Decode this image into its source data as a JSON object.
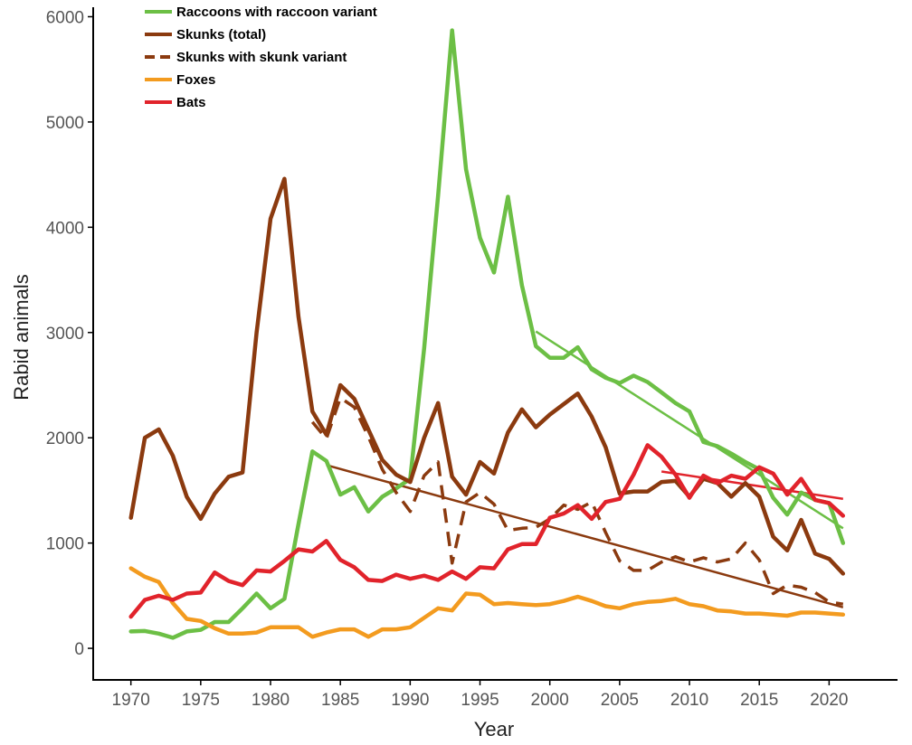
{
  "chart_data": {
    "type": "line",
    "title": "",
    "xlabel": "Year",
    "ylabel": "Rabid animals",
    "xlim": [
      1967.3,
      2024.9
    ],
    "ylim": [
      -300,
      6090
    ],
    "x_ticks": [
      1970,
      1975,
      1980,
      1985,
      1990,
      1995,
      2000,
      2005,
      2010,
      2015,
      2020
    ],
    "y_ticks": [
      0,
      1000,
      2000,
      3000,
      4000,
      5000,
      6000
    ],
    "grid": false,
    "legend_position": "top-left",
    "series": [
      {
        "name": "Raccoons with raccoon variant",
        "color": "#6cbf45",
        "style": "solid",
        "x": [
          1970,
          1971,
          1972,
          1973,
          1974,
          1975,
          1976,
          1977,
          1978,
          1979,
          1980,
          1981,
          1982,
          1983,
          1984,
          1985,
          1986,
          1987,
          1988,
          1989,
          1990,
          1991,
          1992,
          1993,
          1994,
          1995,
          1996,
          1997,
          1998,
          1999,
          2000,
          2001,
          2002,
          2003,
          2004,
          2005,
          2006,
          2007,
          2008,
          2009,
          2010,
          2011,
          2012,
          2013,
          2014,
          2015,
          2016,
          2017,
          2018,
          2019,
          2020,
          2021
        ],
        "values": [
          160,
          165,
          140,
          100,
          160,
          175,
          250,
          250,
          380,
          520,
          380,
          470,
          1180,
          1870,
          1780,
          1460,
          1530,
          1300,
          1440,
          1520,
          1610,
          2850,
          4300,
          5870,
          4550,
          3900,
          3570,
          4290,
          3450,
          2870,
          2760,
          2760,
          2860,
          2650,
          2570,
          2520,
          2590,
          2530,
          2430,
          2330,
          2250,
          1960,
          1920,
          1850,
          1770,
          1700,
          1430,
          1270,
          1480,
          1410,
          1380,
          1000
        ]
      },
      {
        "name": "Skunks (total)",
        "color": "#8b3a0f",
        "style": "solid",
        "x": [
          1970,
          1971,
          1972,
          1973,
          1974,
          1975,
          1976,
          1977,
          1978,
          1979,
          1980,
          1981,
          1982,
          1983,
          1984,
          1985,
          1986,
          1987,
          1988,
          1989,
          1990,
          1991,
          1992,
          1993,
          1994,
          1995,
          1996,
          1997,
          1998,
          1999,
          2000,
          2001,
          2002,
          2003,
          2004,
          2005,
          2006,
          2007,
          2008,
          2009,
          2010,
          2011,
          2012,
          2013,
          2014,
          2015,
          2016,
          2017,
          2018,
          2019,
          2020,
          2021
        ],
        "values": [
          1240,
          2000,
          2080,
          1830,
          1440,
          1230,
          1470,
          1630,
          1670,
          3000,
          4080,
          4460,
          3150,
          2250,
          2030,
          2500,
          2370,
          2080,
          1790,
          1650,
          1580,
          2000,
          2330,
          1630,
          1460,
          1770,
          1660,
          2050,
          2270,
          2100,
          2220,
          2320,
          2420,
          2200,
          1910,
          1470,
          1490,
          1490,
          1580,
          1590,
          1440,
          1610,
          1570,
          1440,
          1570,
          1440,
          1060,
          930,
          1220,
          900,
          850,
          710
        ]
      },
      {
        "name": "Skunks with skunk variant",
        "color": "#8b3a0f",
        "style": "dashed",
        "x": [
          1983,
          1984,
          1985,
          1986,
          1987,
          1988,
          1989,
          1990,
          1991,
          1992,
          1993,
          1994,
          1995,
          1996,
          1997,
          1998,
          1999,
          2000,
          2001,
          2002,
          2003,
          2004,
          2005,
          2006,
          2007,
          2008,
          2009,
          2010,
          2011,
          2012,
          2013,
          2014,
          2015,
          2016,
          2017,
          2018,
          2019,
          2020,
          2021
        ],
        "values": [
          2150,
          1990,
          2380,
          2290,
          2010,
          1700,
          1480,
          1300,
          1640,
          1770,
          810,
          1390,
          1480,
          1370,
          1120,
          1140,
          1150,
          1230,
          1360,
          1320,
          1390,
          1100,
          830,
          740,
          740,
          820,
          870,
          820,
          860,
          820,
          850,
          1000,
          840,
          520,
          600,
          580,
          530,
          440,
          420
        ]
      },
      {
        "name": "Foxes",
        "color": "#f39b1f",
        "style": "solid",
        "x": [
          1970,
          1971,
          1972,
          1973,
          1974,
          1975,
          1976,
          1977,
          1978,
          1979,
          1980,
          1981,
          1982,
          1983,
          1984,
          1985,
          1986,
          1987,
          1988,
          1989,
          1990,
          1991,
          1992,
          1993,
          1994,
          1995,
          1996,
          1997,
          1998,
          1999,
          2000,
          2001,
          2002,
          2003,
          2004,
          2005,
          2006,
          2007,
          2008,
          2009,
          2010,
          2011,
          2012,
          2013,
          2014,
          2015,
          2016,
          2017,
          2018,
          2019,
          2020,
          2021
        ],
        "values": [
          760,
          680,
          630,
          430,
          280,
          260,
          190,
          140,
          140,
          150,
          200,
          200,
          200,
          110,
          150,
          180,
          180,
          110,
          180,
          180,
          200,
          290,
          380,
          360,
          520,
          510,
          420,
          430,
          420,
          410,
          420,
          450,
          490,
          450,
          400,
          380,
          420,
          440,
          450,
          470,
          420,
          400,
          360,
          350,
          330,
          330,
          320,
          310,
          340,
          340,
          330,
          320
        ]
      },
      {
        "name": "Bats",
        "color": "#e1232b",
        "style": "solid",
        "x": [
          1970,
          1971,
          1972,
          1973,
          1974,
          1975,
          1976,
          1977,
          1978,
          1979,
          1980,
          1981,
          1982,
          1983,
          1984,
          1985,
          1986,
          1987,
          1988,
          1989,
          1990,
          1991,
          1992,
          1993,
          1994,
          1995,
          1996,
          1997,
          1998,
          1999,
          2000,
          2001,
          2002,
          2003,
          2004,
          2005,
          2006,
          2007,
          2008,
          2009,
          2010,
          2011,
          2012,
          2013,
          2014,
          2015,
          2016,
          2017,
          2018,
          2019,
          2020,
          2021
        ],
        "values": [
          300,
          460,
          500,
          460,
          520,
          530,
          720,
          640,
          600,
          740,
          730,
          830,
          940,
          920,
          1020,
          840,
          770,
          650,
          640,
          700,
          660,
          690,
          650,
          730,
          660,
          770,
          760,
          940,
          990,
          990,
          1240,
          1280,
          1360,
          1230,
          1390,
          1420,
          1650,
          1930,
          1820,
          1650,
          1430,
          1640,
          1570,
          1640,
          1610,
          1720,
          1660,
          1460,
          1610,
          1410,
          1380,
          1260
        ]
      }
    ],
    "trend_lines": [
      {
        "of": "Raccoons with raccoon variant",
        "color": "#6cbf45",
        "x": [
          1999,
          2021
        ],
        "values": [
          3010,
          1140
        ]
      },
      {
        "of": "Skunks with skunk variant",
        "color": "#8b3a0f",
        "x": [
          1984,
          2021
        ],
        "values": [
          1740,
          390
        ]
      },
      {
        "of": "Bats",
        "color": "#e1232b",
        "x": [
          2008,
          2021
        ],
        "values": [
          1680,
          1420
        ]
      }
    ]
  }
}
